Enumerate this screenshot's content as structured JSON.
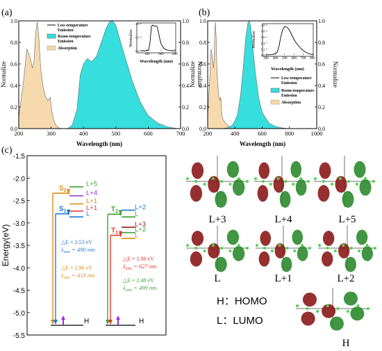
{
  "panel_labels": {
    "a": "(a)",
    "b": "(b)",
    "c": "(c)"
  },
  "colors": {
    "emission_fill": "#37dede",
    "absorption_fill": "#f5d6a5",
    "orange": "#e08a10",
    "blue": "#1a78d4",
    "green": "#3aa232",
    "red": "#e8362c",
    "purple": "#9a2fd0",
    "dark_red": "#8a1c1c",
    "lfive_green": "#22b05a"
  },
  "chart_data": [
    {
      "id": "a",
      "type": "area",
      "xlabel": "Wavelength (nm)",
      "ylabel_left": "Normalize",
      "ylabel_right": "Normalize",
      "xlim": [
        200,
        700
      ],
      "ylim": [
        0,
        1.0
      ],
      "xticks": [
        200,
        300,
        400,
        500,
        600,
        700
      ],
      "yticks": [
        0.0,
        0.2,
        0.4,
        0.6,
        0.8,
        1.0
      ],
      "legend": [
        "Low-temperature Emission",
        "Room-temperature Emission",
        "Absorption"
      ],
      "series": [
        {
          "name": "Absorption",
          "style": "absorption",
          "x": [
            200,
            215,
            225,
            235,
            242,
            247,
            252,
            257,
            262,
            268,
            275,
            282,
            290,
            297,
            302,
            308,
            315,
            322,
            330
          ],
          "y": [
            0.1,
            0.45,
            0.74,
            0.66,
            0.56,
            0.62,
            0.88,
            0.99,
            0.85,
            0.55,
            0.4,
            0.3,
            0.26,
            0.29,
            0.17,
            0.08,
            0.03,
            0.01,
            0.0
          ]
        },
        {
          "name": "Room-temperature Emission",
          "style": "emission",
          "x": [
            350,
            365,
            380,
            390,
            400,
            412,
            425,
            440,
            455,
            470,
            480,
            490,
            500,
            515,
            530,
            550,
            575,
            600,
            630,
            660,
            690
          ],
          "y": [
            0.0,
            0.03,
            0.18,
            0.5,
            0.6,
            0.65,
            0.62,
            0.67,
            0.8,
            0.93,
            0.99,
            1.0,
            0.96,
            0.8,
            0.65,
            0.45,
            0.25,
            0.12,
            0.05,
            0.015,
            0.0
          ]
        }
      ],
      "inset": {
        "xlabel": "Wavelength (nm)",
        "ylabel": "Normalize",
        "xlim": [
          300,
          800
        ],
        "ylim": [
          0,
          1.0
        ],
        "xticks": [
          400,
          600,
          800
        ],
        "yticks": [
          0.0,
          0.5,
          1.0
        ],
        "x": [
          300,
          380,
          420,
          440,
          460,
          480,
          500,
          520,
          540,
          560,
          580,
          600,
          640,
          680,
          720,
          760,
          800
        ],
        "y": [
          0.0,
          0.0,
          0.02,
          0.3,
          0.9,
          0.95,
          0.9,
          0.92,
          0.9,
          0.7,
          0.45,
          0.25,
          0.08,
          0.03,
          0.01,
          0.0,
          0.0
        ]
      }
    },
    {
      "id": "b",
      "type": "area",
      "xlabel": "Wavelength (nm)",
      "ylabel_left": "Normalize",
      "ylabel_right": "Normalize",
      "xlim": [
        200,
        1000
      ],
      "ylim": [
        0,
        1.0
      ],
      "xticks": [
        200,
        400,
        600,
        800,
        1000
      ],
      "yticks": [
        0.0,
        0.2,
        0.4,
        0.6,
        0.8,
        1.0
      ],
      "legend": [
        "Low-temperature Emission",
        "Room-temperature Emission",
        "Absorption"
      ],
      "series": [
        {
          "name": "Absorption",
          "style": "absorption",
          "x": [
            200,
            215,
            225,
            235,
            242,
            247,
            252,
            257,
            262,
            268,
            275,
            282,
            290,
            297,
            302,
            308,
            315,
            325,
            340,
            360,
            380
          ],
          "y": [
            0.1,
            0.45,
            0.74,
            0.66,
            0.56,
            0.62,
            0.88,
            0.99,
            0.85,
            0.55,
            0.4,
            0.3,
            0.26,
            0.29,
            0.17,
            0.1,
            0.08,
            0.06,
            0.04,
            0.015,
            0.0
          ]
        },
        {
          "name": "Room-temperature Emission",
          "style": "emission",
          "x": [
            300,
            340,
            380,
            400,
            420,
            440,
            460,
            480,
            495,
            505,
            515,
            530,
            550,
            575,
            600,
            650,
            700,
            750,
            800
          ],
          "y": [
            0.0,
            0.005,
            0.03,
            0.07,
            0.14,
            0.3,
            0.55,
            0.85,
            0.98,
            1.0,
            0.95,
            0.78,
            0.52,
            0.28,
            0.15,
            0.05,
            0.02,
            0.005,
            0.0
          ]
        }
      ],
      "inset": {
        "xlabel": "Wavelength (nm)",
        "ylabel": "Normalize",
        "xlim": [
          300,
          800
        ],
        "ylim": [
          0,
          1.0
        ],
        "xticks": [
          300,
          400,
          500,
          600,
          700,
          800
        ],
        "yticks": [
          0.0,
          0.2,
          0.4,
          0.6,
          0.8,
          1.0
        ],
        "x": [
          300,
          360,
          400,
          420,
          440,
          460,
          480,
          500,
          520,
          540,
          560,
          580,
          600,
          620,
          650,
          680,
          710,
          740,
          770,
          800
        ],
        "y": [
          0.0,
          0.01,
          0.04,
          0.1,
          0.3,
          0.62,
          0.85,
          0.95,
          0.93,
          0.88,
          0.78,
          0.65,
          0.52,
          0.42,
          0.3,
          0.2,
          0.12,
          0.07,
          0.03,
          0.01
        ]
      }
    }
  ],
  "energy_diagram": {
    "ylabel": "Energy(eV)",
    "ylim": [
      -5.3,
      -1.5
    ],
    "yticks": [
      "-1.5",
      "-2.0",
      "-2.5",
      "-3.0",
      "-3.5",
      "-4.0",
      "-4.5",
      "-5.0",
      "-5.5"
    ],
    "homo_label": "H",
    "singlet": {
      "levels": [
        {
          "label": "L+5",
          "value": -2.18,
          "color": "green"
        },
        {
          "label": "L+4",
          "value": -2.38,
          "color": "purple"
        },
        {
          "label": "L+1",
          "value": -2.56,
          "color": "orange"
        },
        {
          "label": "L+1",
          "value": -2.72,
          "color": "red"
        },
        {
          "label": "L",
          "value": -2.85,
          "color": "blue"
        }
      ],
      "states": [
        {
          "label": "S",
          "sub": "2",
          "value": -2.32,
          "color": "orange"
        },
        {
          "label": "S",
          "sub": "1",
          "value": -2.78,
          "color": "blue"
        }
      ],
      "gaps": [
        {
          "delta": "△E = 2.53 eV",
          "lambda": "λ",
          "sub": "ems",
          "value_nm": " = 490 nm",
          "color": "blue"
        },
        {
          "delta": "△E = 2.96 eV",
          "lambda": "λ",
          "sub": "ems",
          "value_nm": " = 418 nm",
          "color": "orange"
        }
      ]
    },
    "triplet": {
      "levels": [
        {
          "label": "L+2",
          "value": -2.7,
          "color": "blue"
        },
        {
          "label": "L",
          "value": -2.85,
          "color": "green"
        },
        {
          "label": "L+3",
          "value": -3.08,
          "color": "dark_red"
        },
        {
          "label": "L+2",
          "value": -3.2,
          "color": "green"
        },
        {
          "label": "L",
          "value": -3.33,
          "color": "orange"
        }
      ],
      "states": [
        {
          "label": "T",
          "sub": "2",
          "value": -2.79,
          "color": "green"
        },
        {
          "label": "T",
          "sub": "1",
          "value": -3.26,
          "color": "red"
        }
      ],
      "gaps": [
        {
          "delta": "△E = 1.98 eV",
          "lambda": "λ",
          "sub": "ems",
          "value_nm": " = 627 nm",
          "color": "red"
        },
        {
          "delta": "△E = 2.48 eV",
          "lambda": "λ",
          "sub": "ems",
          "value_nm": " = 499 nm",
          "color": "green"
        }
      ]
    }
  },
  "orbitals": [
    "L+3",
    "L+4",
    "L+5",
    "L",
    "L+1",
    "L+2",
    "H"
  ],
  "legend_text": {
    "homo": "H：HOMO",
    "lumo": "L：LUMO"
  }
}
